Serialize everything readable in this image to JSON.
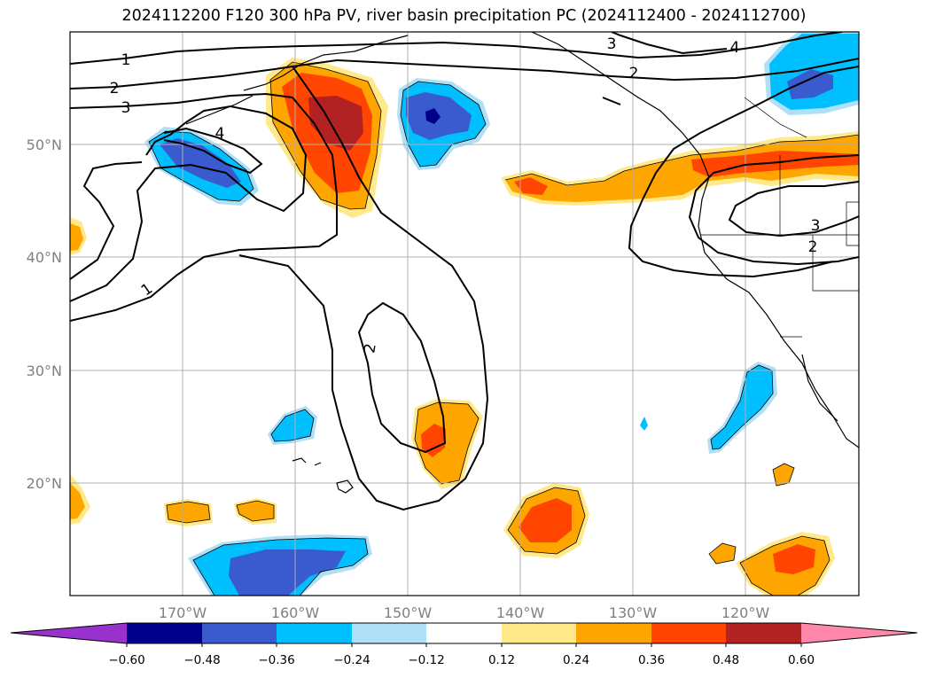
{
  "title": "2024112200 F120 300 hPa PV, river basin precipitation PC (2024112400 - 2024112700)",
  "map": {
    "lon_range": [
      -180,
      -110
    ],
    "lat_range": [
      10,
      60
    ],
    "lon_ticks": [
      {
        "lon": -170,
        "label": "170°W"
      },
      {
        "lon": -160,
        "label": "160°W"
      },
      {
        "lon": -150,
        "label": "150°W"
      },
      {
        "lon": -140,
        "label": "140°W"
      },
      {
        "lon": -130,
        "label": "130°W"
      },
      {
        "lon": -120,
        "label": "120°W"
      }
    ],
    "lat_ticks": [
      {
        "lat": 50,
        "label": "50°N"
      },
      {
        "lat": 40,
        "label": "40°N"
      },
      {
        "lat": 30,
        "label": "30°N"
      },
      {
        "lat": 20,
        "label": "20°N"
      }
    ],
    "grid": true
  },
  "colorbar": {
    "colors": [
      "#9932cc",
      "#00008b",
      "#3a5bcd",
      "#00bfff",
      "#b0e0f8",
      "#ffffff",
      "#ffe98a",
      "#ffa500",
      "#ff4500",
      "#b22222",
      "#ff88aa"
    ],
    "ticks": [
      "−0.60",
      "−0.48",
      "−0.36",
      "−0.24",
      "−0.12",
      "0.12",
      "0.24",
      "0.36",
      "0.48",
      "0.60"
    ],
    "extend": "both"
  },
  "contour_labels": [
    "1",
    "2",
    "3",
    "4",
    "1",
    "2",
    "2",
    "3",
    "4",
    "3",
    "2"
  ]
}
